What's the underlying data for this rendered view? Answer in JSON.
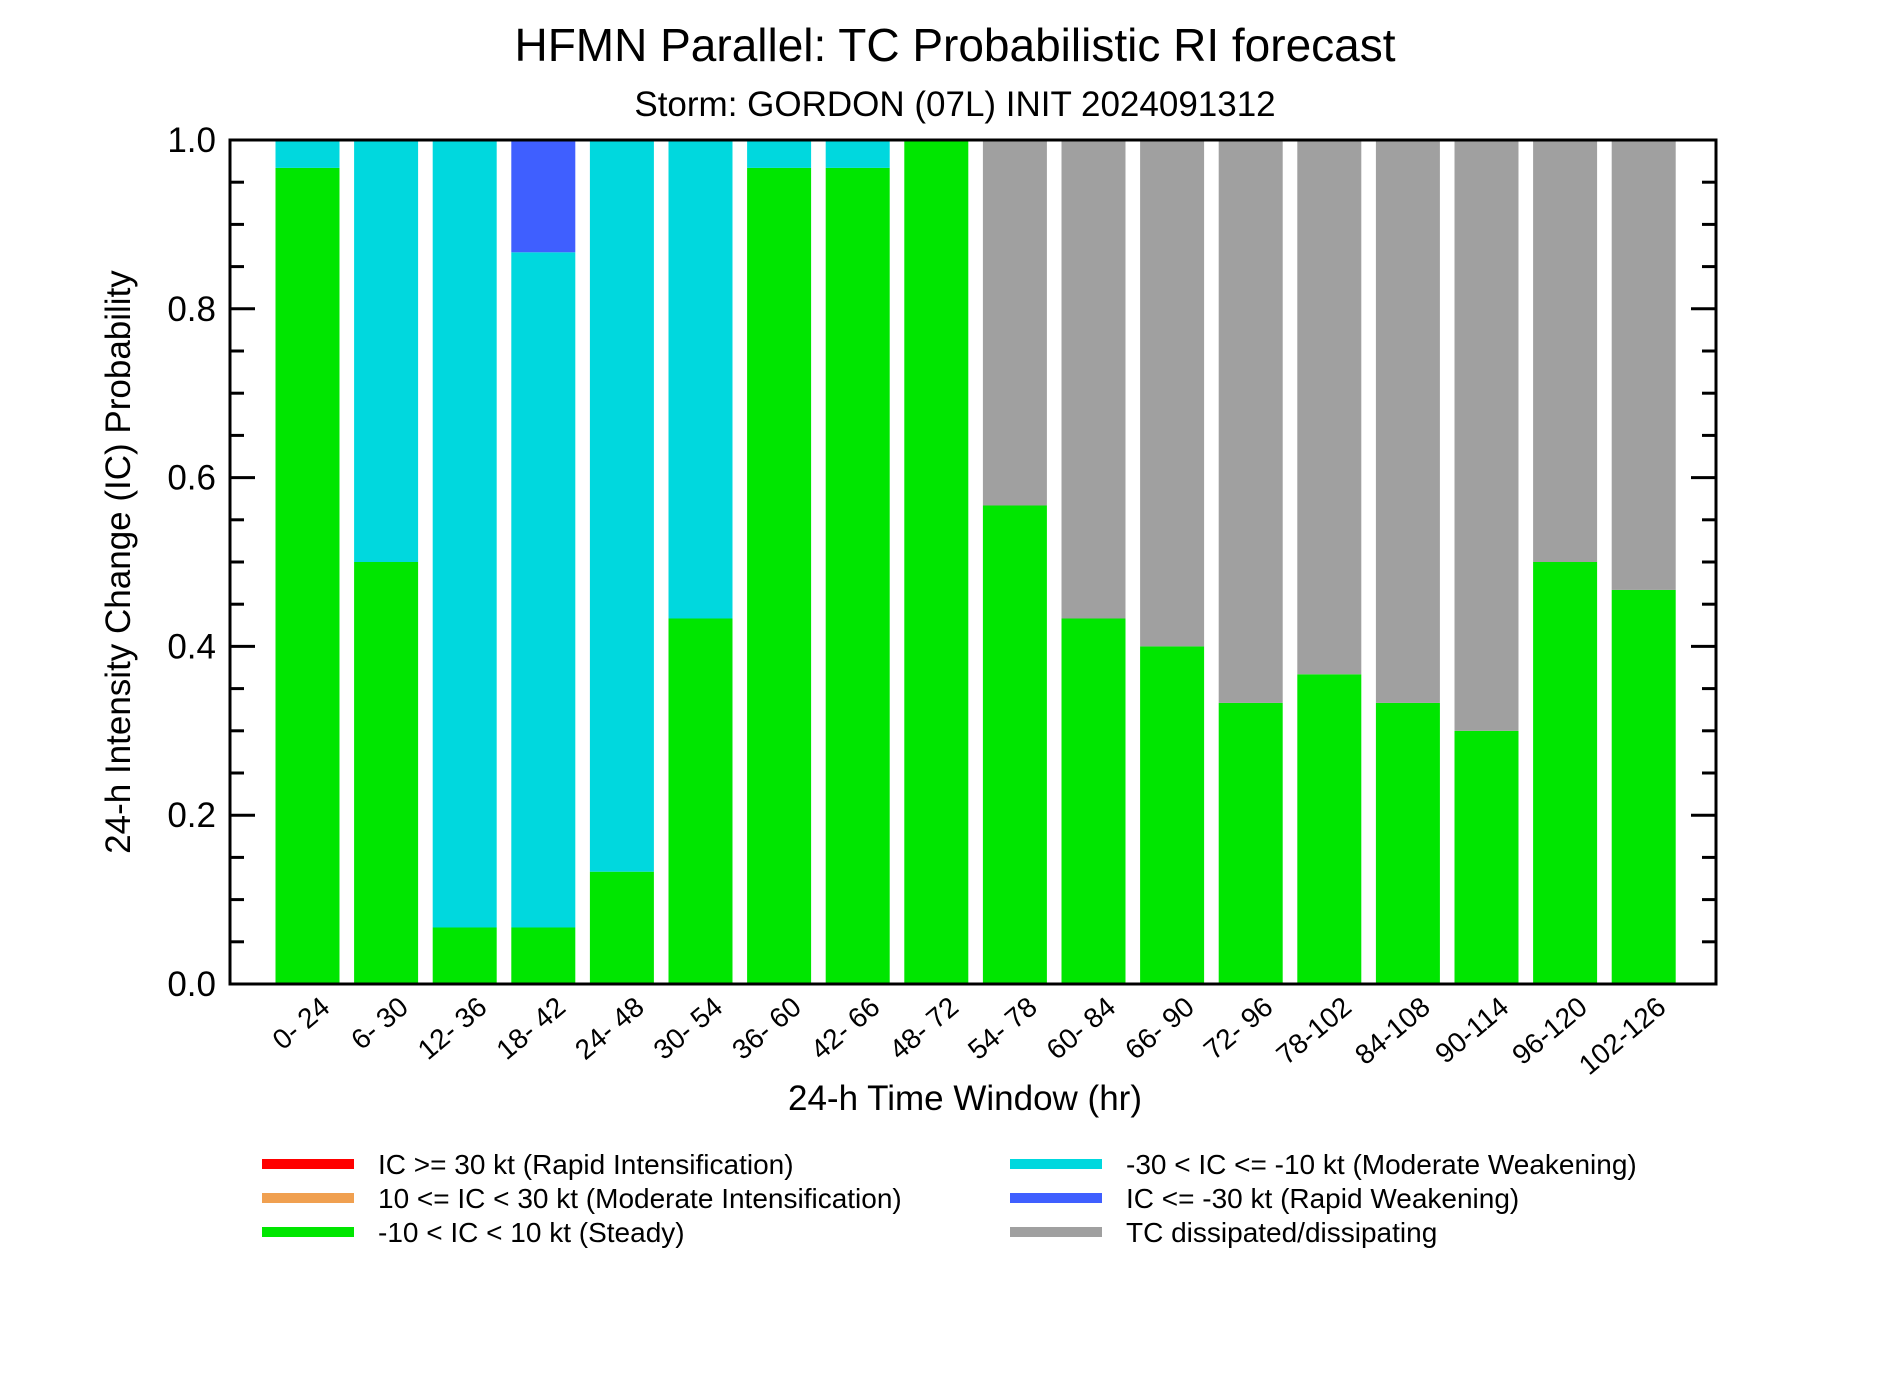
{
  "chart_data": {
    "type": "bar",
    "stacked": true,
    "title": "HFMN Parallel: TC Probabilistic RI forecast",
    "subtitle": "Storm: GORDON (07L) INIT 2024091312",
    "xlabel": "24-h Time Window (hr)",
    "ylabel": "24-h Intensity Change (IC) Probability",
    "ylim": [
      0,
      1
    ],
    "yticks": [
      "0.0",
      "0.2",
      "0.4",
      "0.6",
      "0.8",
      "1.0"
    ],
    "categories": [
      "0- 24",
      "6- 30",
      "12- 36",
      "18- 42",
      "24- 48",
      "30- 54",
      "36- 60",
      "42- 66",
      "48- 72",
      "54- 78",
      "60- 84",
      "66- 90",
      "72- 96",
      "78-102",
      "84-108",
      "90-114",
      "96-120",
      "102-126"
    ],
    "series": [
      {
        "name": "IC >= 30 kt (Rapid Intensification)",
        "color": "#ff0000",
        "values": [
          0,
          0,
          0,
          0,
          0,
          0,
          0,
          0,
          0,
          0,
          0,
          0,
          0,
          0,
          0,
          0,
          0,
          0
        ]
      },
      {
        "name": "10 <= IC < 30 kt (Moderate Intensification)",
        "color": "#f0a050",
        "values": [
          0,
          0,
          0,
          0,
          0,
          0,
          0,
          0,
          0,
          0,
          0,
          0,
          0,
          0,
          0,
          0,
          0,
          0
        ]
      },
      {
        "name": "-10 < IC < 10 kt (Steady)",
        "color": "#00e600",
        "values": [
          0.967,
          0.5,
          0.067,
          0.067,
          0.133,
          0.433,
          0.967,
          0.967,
          1.0,
          0.567,
          0.433,
          0.4,
          0.333,
          0.367,
          0.333,
          0.3,
          0.5,
          0.467
        ]
      },
      {
        "name": "-30 < IC <= -10 kt (Moderate Weakening)",
        "color": "#00d8de",
        "values": [
          0.033,
          0.5,
          0.933,
          0.8,
          0.867,
          0.567,
          0.033,
          0.033,
          0,
          0,
          0,
          0,
          0,
          0,
          0,
          0,
          0,
          0
        ]
      },
      {
        "name": "IC <= -30 kt (Rapid Weakening)",
        "color": "#3f5fff",
        "values": [
          0,
          0,
          0,
          0.133,
          0,
          0,
          0,
          0,
          0,
          0,
          0,
          0,
          0,
          0,
          0,
          0,
          0,
          0
        ]
      },
      {
        "name": "TC dissipated/dissipating",
        "color": "#a0a0a0",
        "values": [
          0,
          0,
          0,
          0,
          0,
          0,
          0,
          0,
          0,
          0.433,
          0.567,
          0.6,
          0.667,
          0.633,
          0.667,
          0.7,
          0.5,
          0.533
        ]
      }
    ],
    "legend_layout": "two columns below the x-axis label"
  }
}
